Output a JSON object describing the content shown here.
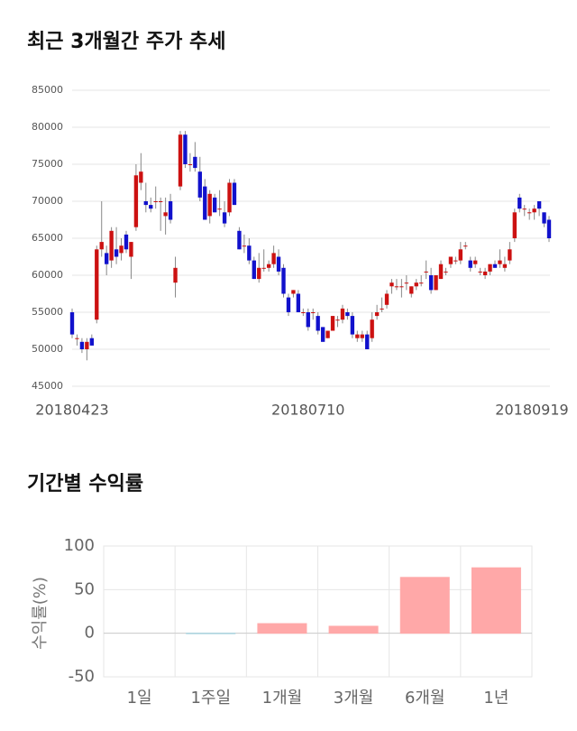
{
  "chart_data": [
    {
      "type": "candlestick",
      "title": "최근 3개월간 주가 추세",
      "categories": [
        "20180423",
        null,
        null,
        null,
        null,
        null,
        null,
        null,
        null,
        null,
        null,
        null,
        null,
        null,
        null,
        null,
        null,
        null,
        null,
        null,
        null,
        null,
        null,
        null,
        null,
        null,
        null,
        null,
        null,
        null,
        null,
        null,
        null,
        null,
        null,
        null,
        null,
        null,
        null,
        null,
        null,
        null,
        null,
        null,
        null,
        null,
        null,
        null,
        "20180710",
        null,
        null,
        null,
        null,
        null,
        null,
        null,
        null,
        null,
        null,
        null,
        null,
        null,
        null,
        null,
        null,
        null,
        null,
        null,
        null,
        null,
        null,
        null,
        null,
        null,
        null,
        null,
        null,
        null,
        null,
        null,
        null,
        null,
        null,
        null,
        null,
        null,
        null,
        null,
        null,
        null,
        null,
        null,
        null,
        null,
        "20180919",
        null,
        null,
        null
      ],
      "open": [
        55000,
        51500,
        51000,
        50000,
        51500,
        54000,
        63500,
        63000,
        62000,
        63500,
        63000,
        65500,
        62500,
        66500,
        72500,
        70000,
        69500,
        70000,
        70000,
        68000,
        70000,
        59000,
        72000,
        79000,
        75000,
        76000,
        74000,
        72000,
        68000,
        70500,
        69000,
        68500,
        68500,
        72500,
        66000,
        64000,
        64000,
        62000,
        59500,
        61000,
        61000,
        61500,
        62500,
        61000,
        57000,
        57500,
        57500,
        55000,
        55000,
        55000,
        54500,
        53000,
        51500,
        52500,
        54000,
        54000,
        55000,
        54500,
        51500,
        51500,
        52000,
        51500,
        54500,
        55500,
        56000,
        58500,
        58500,
        58500,
        59000,
        57500,
        58500,
        59000,
        60500,
        60000,
        58000,
        59500,
        60500,
        61500,
        62000,
        62000,
        64000,
        62000,
        61500,
        60500,
        60000,
        60500,
        61500,
        61500,
        61000,
        62000,
        65000,
        70500,
        69000,
        68500,
        68500,
        70000,
        68500,
        67500
      ],
      "high": [
        55500,
        52000,
        51500,
        51500,
        52000,
        64000,
        70000,
        64000,
        66500,
        66500,
        65000,
        66000,
        64500,
        75000,
        76500,
        72500,
        70500,
        72000,
        70500,
        70500,
        71000,
        62500,
        79500,
        79500,
        76500,
        78000,
        76000,
        73000,
        71500,
        71000,
        71500,
        70000,
        73000,
        73000,
        66500,
        65500,
        65000,
        62500,
        63000,
        63500,
        62000,
        64000,
        63500,
        61500,
        57500,
        58000,
        58000,
        55500,
        55500,
        55500,
        55000,
        53000,
        52500,
        54500,
        54500,
        56000,
        55500,
        55000,
        52500,
        52500,
        52500,
        55000,
        56000,
        57000,
        58000,
        59500,
        59500,
        59500,
        60000,
        58500,
        59500,
        60000,
        62000,
        61000,
        60000,
        62000,
        61000,
        62500,
        62500,
        64500,
        64500,
        62500,
        62500,
        61000,
        61000,
        61500,
        62000,
        63500,
        62500,
        64500,
        69000,
        71000,
        69500,
        69000,
        69500,
        70000,
        68500,
        68000
      ],
      "low": [
        51500,
        50500,
        49500,
        48500,
        50500,
        53500,
        62500,
        60000,
        61000,
        61500,
        62000,
        63000,
        59500,
        66000,
        71500,
        68500,
        68500,
        69000,
        66000,
        65500,
        67000,
        57000,
        71500,
        74500,
        74000,
        74000,
        70000,
        67500,
        67000,
        68500,
        68000,
        66500,
        68000,
        69500,
        63500,
        63000,
        61500,
        59500,
        59000,
        60500,
        60500,
        61000,
        60000,
        57000,
        54500,
        57000,
        55000,
        54500,
        52500,
        54000,
        52000,
        51000,
        51500,
        52500,
        53000,
        53500,
        54000,
        51500,
        51000,
        51000,
        50000,
        51000,
        54000,
        55000,
        55500,
        57500,
        58000,
        57000,
        58000,
        57000,
        58000,
        58500,
        59500,
        57500,
        58000,
        59500,
        60000,
        61000,
        61500,
        61500,
        63500,
        60500,
        61000,
        60000,
        59500,
        60000,
        61000,
        61000,
        60500,
        61500,
        64500,
        68500,
        68000,
        67500,
        67500,
        68000,
        66500,
        64500
      ],
      "close": [
        52000,
        51500,
        50000,
        51000,
        50500,
        63500,
        64500,
        61500,
        66000,
        62500,
        64000,
        63500,
        64500,
        73500,
        74000,
        69500,
        69000,
        70000,
        70000,
        68500,
        67500,
        61000,
        79000,
        75000,
        75000,
        74500,
        70500,
        67500,
        71000,
        68500,
        69000,
        67000,
        72500,
        69500,
        63500,
        64000,
        62000,
        59500,
        61000,
        61000,
        61500,
        63000,
        60500,
        57500,
        55000,
        58000,
        55000,
        55000,
        53000,
        55000,
        52500,
        51000,
        52500,
        54500,
        54000,
        55500,
        54500,
        52000,
        52000,
        52000,
        50000,
        54000,
        55000,
        55500,
        57500,
        59000,
        58500,
        58500,
        59000,
        58500,
        59000,
        59000,
        60500,
        58000,
        60000,
        61500,
        60500,
        62500,
        62000,
        63500,
        64000,
        61000,
        62000,
        60500,
        60500,
        61500,
        61000,
        62000,
        61500,
        63500,
        68500,
        69000,
        69000,
        68500,
        69000,
        69000,
        67000,
        65000
      ],
      "up_color": "#cc1111",
      "down_color": "#1111cc",
      "ylim": [
        45000,
        85000
      ],
      "yticks": [
        45000,
        50000,
        55000,
        60000,
        65000,
        70000,
        75000,
        80000,
        85000
      ],
      "grid": true
    },
    {
      "type": "bar",
      "title": "기간별 수익률",
      "categories": [
        "1일",
        "1주일",
        "1개월",
        "3개월",
        "6개월",
        "1년"
      ],
      "values": [
        0,
        -0.5,
        11,
        8,
        64,
        75
      ],
      "colors": [
        "#ffa8a8",
        "#a8d4e0",
        "#ffa8a8",
        "#ffa8a8",
        "#ffa8a8",
        "#ffa8a8"
      ],
      "ylabel": "수익률(%)",
      "ylim": [
        -50,
        100
      ],
      "yticks": [
        -50,
        0,
        50,
        100
      ],
      "grid": true
    }
  ]
}
